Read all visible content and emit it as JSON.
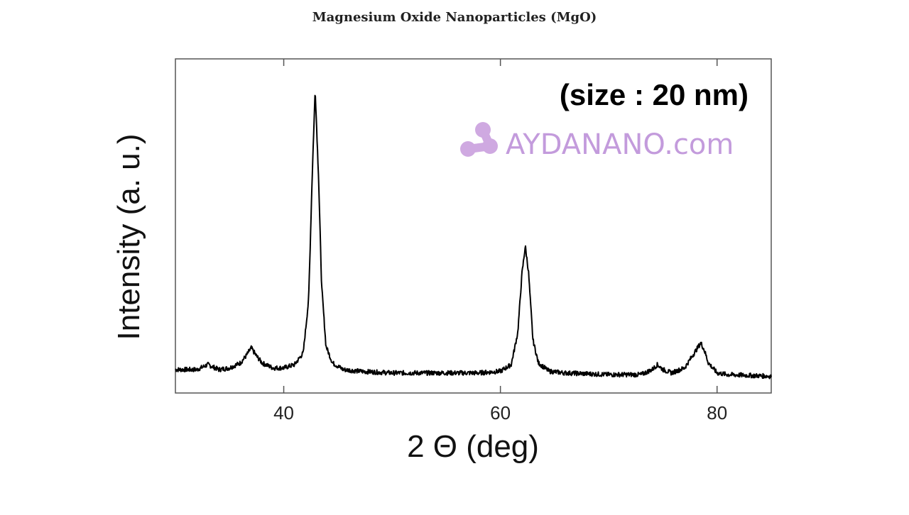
{
  "chart_data": {
    "type": "line",
    "title": "Magnesium Oxide Nanoparticles (MgO)",
    "xlabel": "2 Θ (deg)",
    "ylabel": "Intensity (a. u.)",
    "xlim": [
      30,
      85
    ],
    "ylim": [
      0,
      100
    ],
    "xticks": [
      40,
      60,
      80
    ],
    "annotation": "(size : 20 nm)",
    "grid": false,
    "series": [
      {
        "x": [
          30,
          32,
          33,
          34,
          35,
          36,
          36.5,
          37,
          37.5,
          38,
          39,
          40,
          41,
          41.8,
          42.3,
          42.6,
          42.9,
          43.2,
          43.5,
          43.9,
          44.5,
          45.5,
          47,
          50,
          55,
          58,
          60,
          61,
          61.6,
          62,
          62.3,
          62.6,
          63,
          63.5,
          64.5,
          66,
          70,
          73,
          74,
          74.5,
          75,
          75.8,
          77,
          78,
          78.5,
          78.8,
          79.2,
          80,
          81,
          85
        ],
        "y": [
          7,
          7,
          8.5,
          7,
          7.5,
          9,
          11,
          13.5,
          11,
          9,
          7.5,
          7.5,
          8.5,
          12,
          28,
          62,
          91,
          66,
          32,
          14,
          9,
          7,
          6.5,
          6,
          6,
          6,
          6.5,
          8.5,
          18,
          36,
          44,
          36,
          16,
          9,
          6.5,
          6,
          5.5,
          5.5,
          7,
          8.5,
          7,
          6,
          7.5,
          12.5,
          15,
          13,
          9,
          6,
          5.5,
          5
        ]
      }
    ]
  },
  "watermark": {
    "text": "AYDANANO.com",
    "color": "#b98ad6"
  }
}
